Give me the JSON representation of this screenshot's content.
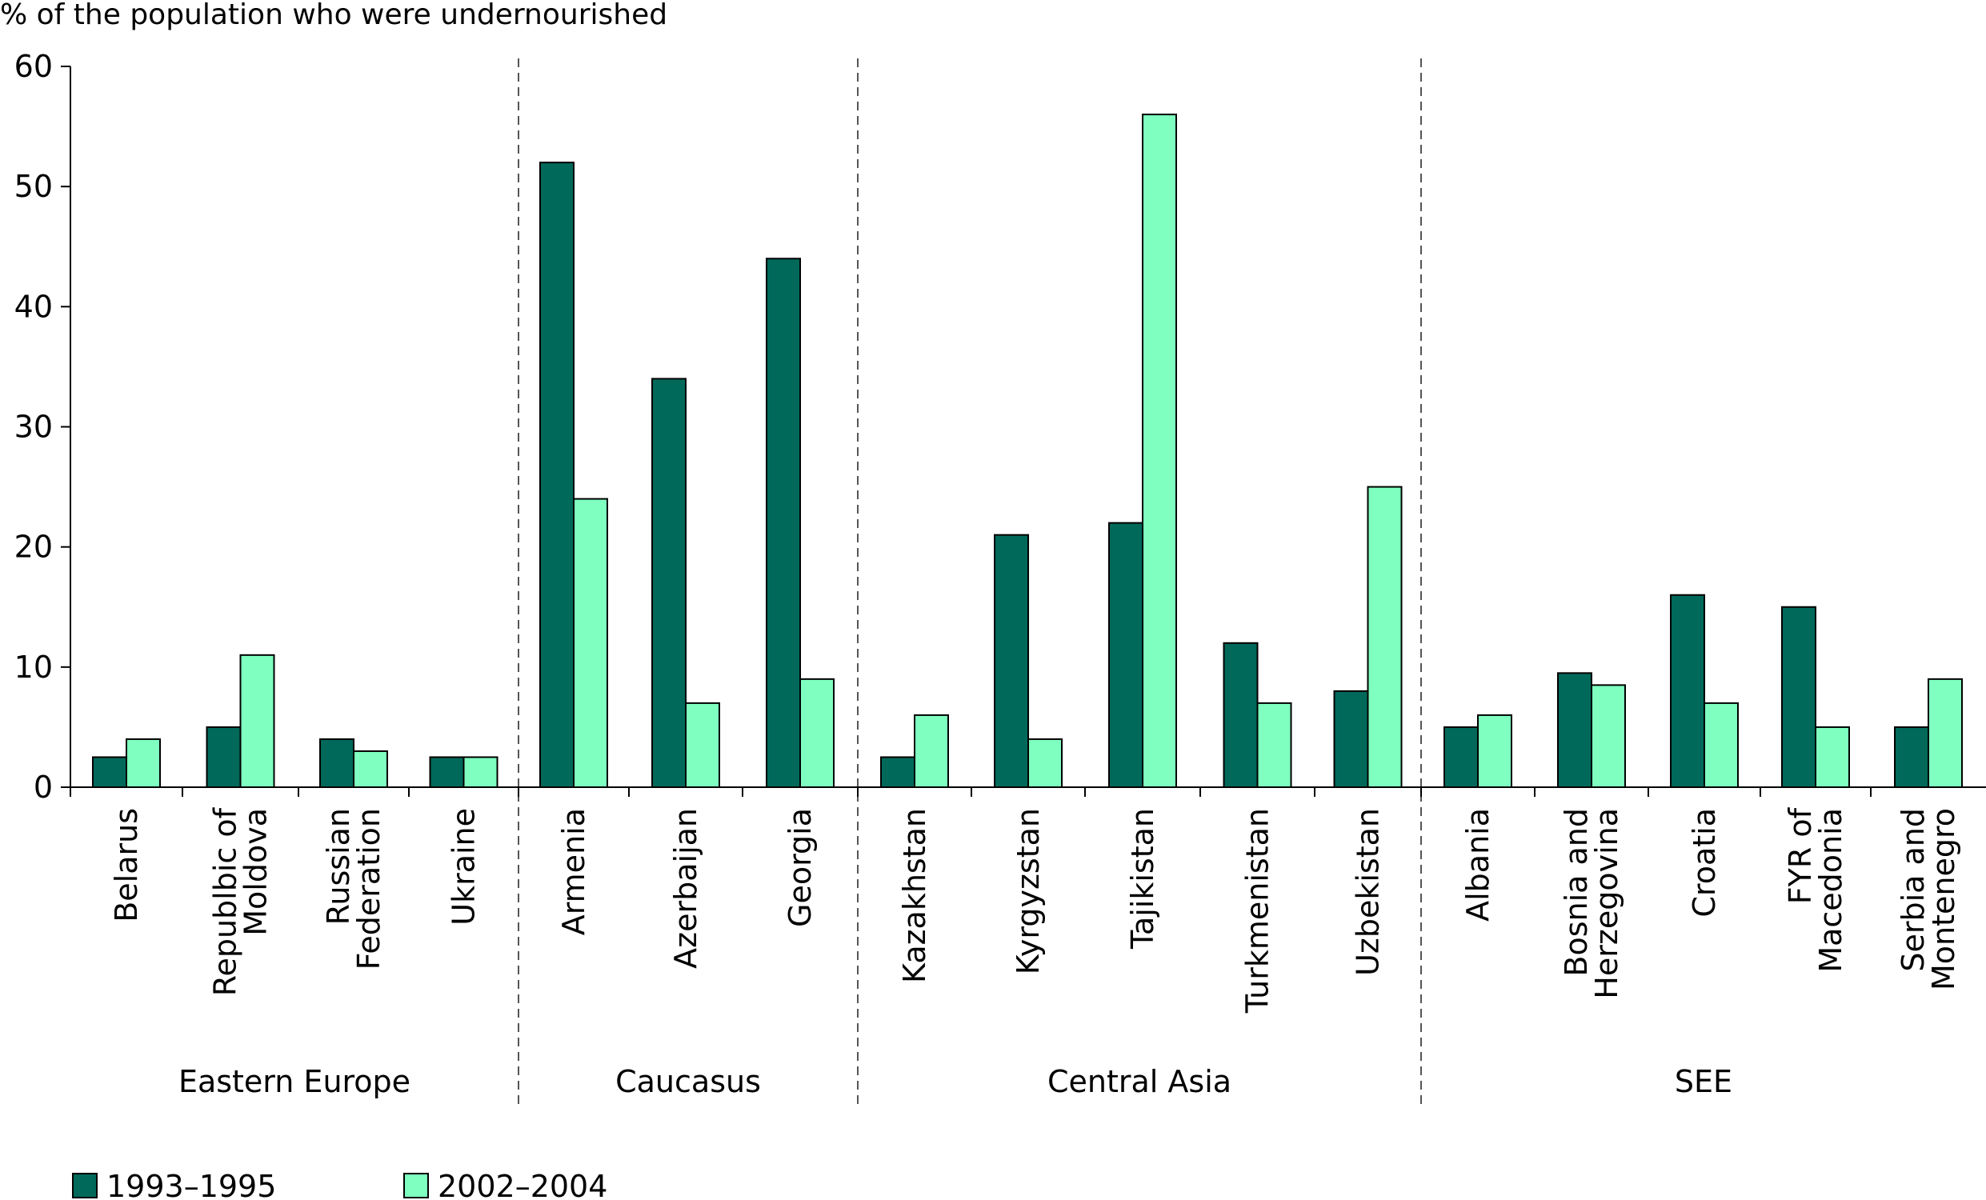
{
  "chart_data": {
    "type": "bar",
    "title": "",
    "ylabel": "% of the population who were undernourished",
    "xlabel": "",
    "ylim": [
      0,
      60
    ],
    "yticks": [
      0,
      10,
      20,
      30,
      40,
      50,
      60
    ],
    "grid": false,
    "legend_position": "bottom-left",
    "categories": [
      "Belarus",
      "Republbic of Moldova",
      "Russian Federation",
      "Ukraine",
      "Armenia",
      "Azerbaijan",
      "Georgia",
      "Kazakhstan",
      "Kyrgyzstan",
      "Tajikistan",
      "Turkmenistan",
      "Uzbekistan",
      "Albania",
      "Bosnia and Herzegovina",
      "Croatia",
      "FYR of Macedonia",
      "Serbia and Montenegro"
    ],
    "category_lines": [
      [
        "Belarus"
      ],
      [
        "Republbic of",
        "Moldova"
      ],
      [
        "Russian",
        "Federation"
      ],
      [
        "Ukraine"
      ],
      [
        "Armenia"
      ],
      [
        "Azerbaijan"
      ],
      [
        "Georgia"
      ],
      [
        "Kazakhstan"
      ],
      [
        "Kyrgyzstan"
      ],
      [
        "Tajikistan"
      ],
      [
        "Turkmenistan"
      ],
      [
        "Uzbekistan"
      ],
      [
        "Albania"
      ],
      [
        "Bosnia and",
        "Herzegovina"
      ],
      [
        "Croatia"
      ],
      [
        "FYR of",
        "Macedonia"
      ],
      [
        "Serbia and",
        "Montenegro"
      ]
    ],
    "groups": [
      {
        "name": "Eastern Europe",
        "count": 4
      },
      {
        "name": "Caucasus",
        "count": 3
      },
      {
        "name": "Central Asia",
        "count": 5
      },
      {
        "name": "SEE",
        "count": 5
      }
    ],
    "series": [
      {
        "name": "1993–1995",
        "color": "#00695a",
        "values": [
          2.5,
          5,
          4,
          2.5,
          52,
          34,
          44,
          2.5,
          21,
          22,
          12,
          8,
          5,
          9.5,
          16,
          15,
          5
        ]
      },
      {
        "name": "2002–2004",
        "color": "#7fffc0",
        "values": [
          4,
          11,
          3,
          2.5,
          24,
          7,
          9,
          6,
          4,
          56,
          7,
          25,
          6,
          8.5,
          7,
          5,
          9
        ]
      }
    ]
  }
}
